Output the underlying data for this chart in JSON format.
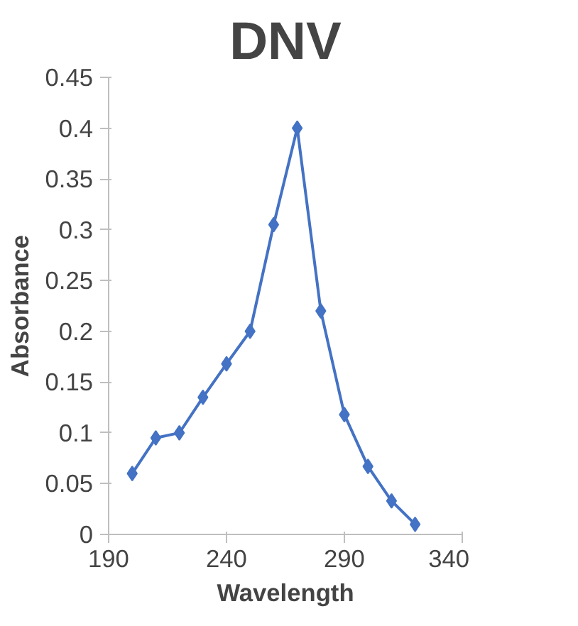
{
  "chart_data": {
    "type": "line",
    "title": "DNV",
    "xlabel": "Wavelength",
    "ylabel": "Absorbance",
    "x": [
      200,
      210,
      220,
      230,
      240,
      250,
      260,
      270,
      280,
      290,
      300,
      310,
      320
    ],
    "series": [
      {
        "color": "#4472c4",
        "values": [
          0.06,
          0.095,
          0.1,
          0.135,
          0.168,
          0.2,
          0.305,
          0.4,
          0.22,
          0.118,
          0.067,
          0.033,
          0.01
        ]
      }
    ],
    "xlim": [
      190,
      340
    ],
    "xticks": [
      190,
      240,
      290,
      340
    ],
    "ylim": [
      0,
      0.45
    ],
    "yticks": [
      0,
      0.05,
      0.1,
      0.15,
      0.2,
      0.25,
      0.3,
      0.35,
      0.4,
      0.45
    ],
    "grid": false,
    "marker": "diamond",
    "line_style": "solid"
  }
}
